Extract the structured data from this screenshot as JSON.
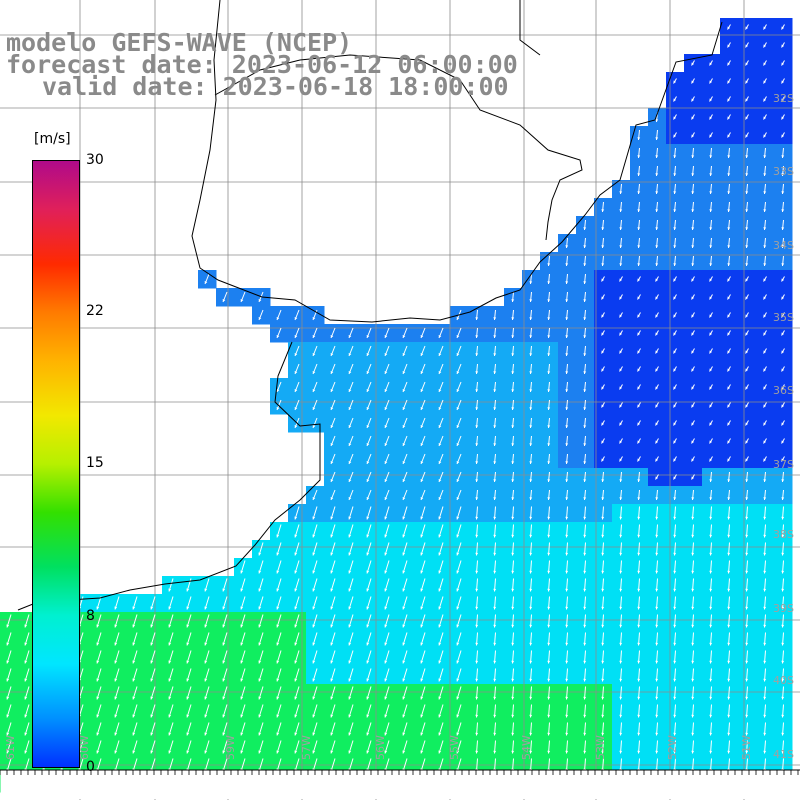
{
  "title": {
    "model": "modelo GEFS-WAVE (NCEP)",
    "forecast": "forecast date: 2023-06-12 06:00:00",
    "valid": "valid date: 2023-06-18 18:00:00"
  },
  "colorbar": {
    "unit": "[m/s]",
    "ticks": [
      "30",
      "22",
      "15",
      "8",
      "0"
    ],
    "colors": [
      "#b00a8a",
      "#e0205a",
      "#ff2a00",
      "#ff7b00",
      "#ffb300",
      "#f2e800",
      "#b6f000",
      "#33e000",
      "#00e060",
      "#00f0d0",
      "#00e6ff",
      "#0090ff",
      "#0030ff"
    ]
  },
  "map": {
    "lat_labels": [
      "32S",
      "33S",
      "34S",
      "35S",
      "36S",
      "37S",
      "38S",
      "39S",
      "40S",
      "41S"
    ],
    "lon_labels": [
      "61W",
      "60W",
      "59W",
      "57W",
      "56W",
      "55W",
      "54W",
      "53W",
      "52W",
      "51W"
    ],
    "field_colors": {
      "dark_blue": "#0a3cf0",
      "mid_blue": "#1c80f0",
      "light_blue": "#14aaf5",
      "cyan": "#00e0f5",
      "green": "#10ee60"
    },
    "arrow_color": "#ffffff",
    "grid_color": "#8c8c8c",
    "coast_color": "#000000"
  }
}
